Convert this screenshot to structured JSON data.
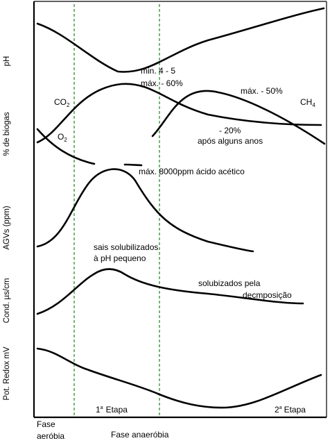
{
  "y_axis_labels": {
    "ph": "pH",
    "biogas": "% de biogas",
    "agv": "AGVs (ppm)",
    "cond": "Cond. µs/cm",
    "redox": "Pot. Redox mV"
  },
  "annotations": {
    "ph_min": "min. 4 - 5",
    "co2_max": "máx. - 60%",
    "co2_label": "CO",
    "co2_sub": "2",
    "o2_label": "O",
    "o2_sub": "2",
    "ch4_max": "máx. - 50%",
    "ch4_label": "CH",
    "ch4_sub": "4",
    "co2_20": "- 20%",
    "after_years": "após alguns anos",
    "agv_max": "máx. 8000ppm ácido acético",
    "salts_line1": "sais solubilizados",
    "salts_line2": "à pH pequeno",
    "solub_line1": "solubizados pela",
    "solub_line2": "decmposição",
    "etapa1_num": "1",
    "etapa1_sup": "a",
    "etapa1_word": "Etapa",
    "etapa2_num": "2",
    "etapa2_sup": "a",
    "etapa2_word": "Etapa"
  },
  "x_labels": {
    "aerobic_line1": "Fase",
    "aerobic_line2": "aeróbia",
    "anaerobic": "Fase anaeróbia"
  },
  "colors": {
    "stroke": "#000000",
    "phase_divider": "#2e8b2e",
    "background": "#ffffff"
  }
}
